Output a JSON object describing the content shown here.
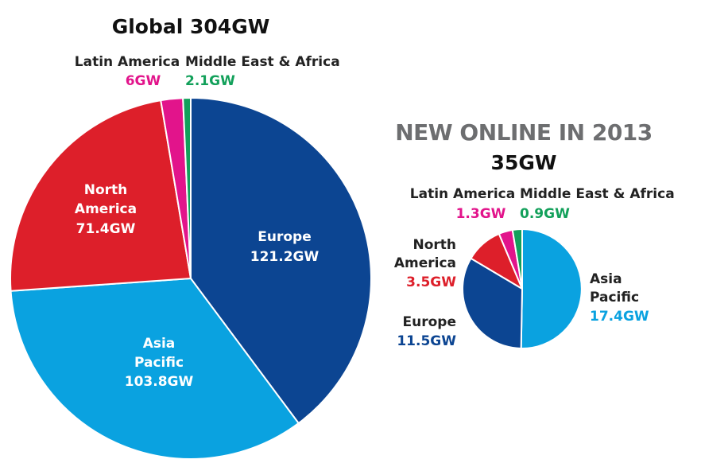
{
  "chart_data": [
    {
      "type": "pie",
      "title": "Global 304GW",
      "start_angle_deg": 0,
      "slices": [
        {
          "label": "Europe",
          "value": 121.2,
          "display": "121.2GW",
          "color": "#0c4592"
        },
        {
          "label": "Asia\nPacific",
          "value": 103.8,
          "display": "103.8GW",
          "color": "#0aa2e0"
        },
        {
          "label": "North\nAmerica",
          "value": 71.4,
          "display": "71.4GW",
          "color": "#dd1f2a"
        },
        {
          "label": "Latin America",
          "value": 6,
          "display": "6GW",
          "color": "#e2148b"
        },
        {
          "label": "Middle East & Africa",
          "value": 2.1,
          "display": "2.1GW",
          "color": "#12a05a"
        }
      ]
    },
    {
      "type": "pie",
      "title": "NEW ONLINE IN 2013",
      "subtitle": "35GW",
      "start_angle_deg": 0,
      "slices": [
        {
          "label": "Asia\nPacific",
          "value": 17.4,
          "display": "17.4GW",
          "color": "#0aa2e0"
        },
        {
          "label": "Europe",
          "value": 11.5,
          "display": "11.5GW",
          "color": "#0c4592"
        },
        {
          "label": "North\nAmerica",
          "value": 3.5,
          "display": "3.5GW",
          "color": "#dd1f2a"
        },
        {
          "label": "Latin America",
          "value": 1.3,
          "display": "1.3GW",
          "color": "#e2148b"
        },
        {
          "label": "Middle East & Africa",
          "value": 0.9,
          "display": "0.9GW",
          "color": "#12a05a"
        }
      ]
    }
  ]
}
